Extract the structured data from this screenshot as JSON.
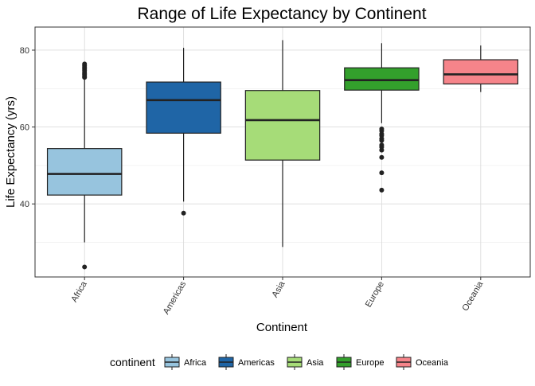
{
  "chart_data": {
    "type": "boxplot",
    "title": "Range of Life Expectancy by Continent",
    "xlabel": "Continent",
    "ylabel": "Life Expectancy (yrs)",
    "ylim": [
      21,
      86
    ],
    "yticks": [
      40,
      60,
      80
    ],
    "grid": true,
    "legend_position": "bottom",
    "legend_title": "continent",
    "categories": [
      "Africa",
      "Americas",
      "Asia",
      "Europe",
      "Oceania"
    ],
    "series": [
      {
        "name": "Africa",
        "color": "#97c4de",
        "whisker_low": 30,
        "q1": 42.3,
        "median": 47.8,
        "q3": 54.4,
        "whisker_high": 72.8,
        "outliers": [
          23.6,
          72.9,
          73.2,
          73.6,
          73.9,
          74.3,
          74.8,
          75.2,
          75.6,
          76.0,
          76.4
        ]
      },
      {
        "name": "Americas",
        "color": "#1f65a6",
        "whisker_low": 40.6,
        "q1": 58.4,
        "median": 67.0,
        "q3": 71.7,
        "whisker_high": 80.6,
        "outliers": [
          37.6
        ]
      },
      {
        "name": "Asia",
        "color": "#a6dc78",
        "whisker_low": 28.8,
        "q1": 51.4,
        "median": 61.8,
        "q3": 69.5,
        "whisker_high": 82.6,
        "outliers": []
      },
      {
        "name": "Europe",
        "color": "#33a02c",
        "whisker_low": 61.0,
        "q1": 69.6,
        "median": 72.2,
        "q3": 75.4,
        "whisker_high": 81.8,
        "outliers": [
          43.6,
          48.1,
          52.1,
          54.0,
          54.8,
          55.3,
          56.5,
          57.0,
          57.8,
          58.2,
          59.0,
          59.5
        ]
      },
      {
        "name": "Oceania",
        "color": "#f6848a",
        "whisker_low": 69.1,
        "q1": 71.2,
        "median": 73.7,
        "q3": 77.5,
        "whisker_high": 81.2,
        "outliers": []
      }
    ]
  }
}
